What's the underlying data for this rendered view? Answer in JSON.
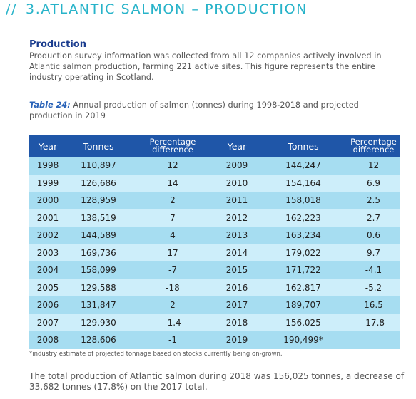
{
  "heading": {
    "slashes": "//",
    "title": "3.ATLANTIC SALMON – PRODUCTION"
  },
  "section_title": "Production",
  "intro": "Production survey information was collected from all 12 companies actively involved in Atlantic salmon production, farming 221 active sites. This figure represents the entire industry operating in Scotland.",
  "caption": {
    "label": "Table 24:",
    "text": " Annual production of salmon (tonnes) during 1998-2018 and projected production in 2019"
  },
  "table": {
    "headers": [
      "Year",
      "Tonnes",
      "Percentage difference",
      "Year",
      "Tonnes",
      "Percentage difference"
    ],
    "rows": [
      [
        "1998",
        "110,897",
        "12",
        "2009",
        "144,247",
        "12"
      ],
      [
        "1999",
        "126,686",
        "14",
        "2010",
        "154,164",
        "6.9"
      ],
      [
        "2000",
        "128,959",
        "2",
        "2011",
        "158,018",
        "2.5"
      ],
      [
        "2001",
        "138,519",
        "7",
        "2012",
        "162,223",
        "2.7"
      ],
      [
        "2002",
        "144,589",
        "4",
        "2013",
        "163,234",
        "0.6"
      ],
      [
        "2003",
        "169,736",
        "17",
        "2014",
        "179,022",
        "9.7"
      ],
      [
        "2004",
        "158,099",
        "-7",
        "2015",
        "171,722",
        "-4.1"
      ],
      [
        "2005",
        "129,588",
        "-18",
        "2016",
        "162,817",
        "-5.2"
      ],
      [
        "2006",
        "131,847",
        "2",
        "2017",
        "189,707",
        "16.5"
      ],
      [
        "2007",
        "129,930",
        "-1.4",
        "2018",
        "156,025",
        "-17.8"
      ],
      [
        "2008",
        "128,606",
        "-1",
        "2019",
        "190,499*",
        ""
      ]
    ]
  },
  "footnote": "*industry estimate of projected tonnage based on stocks currently being on-grown.",
  "total": "The total production of Atlantic salmon during 2018 was 156,025 tonnes, a decrease of 33,682 tonnes (17.8%) on the 2017 total."
}
